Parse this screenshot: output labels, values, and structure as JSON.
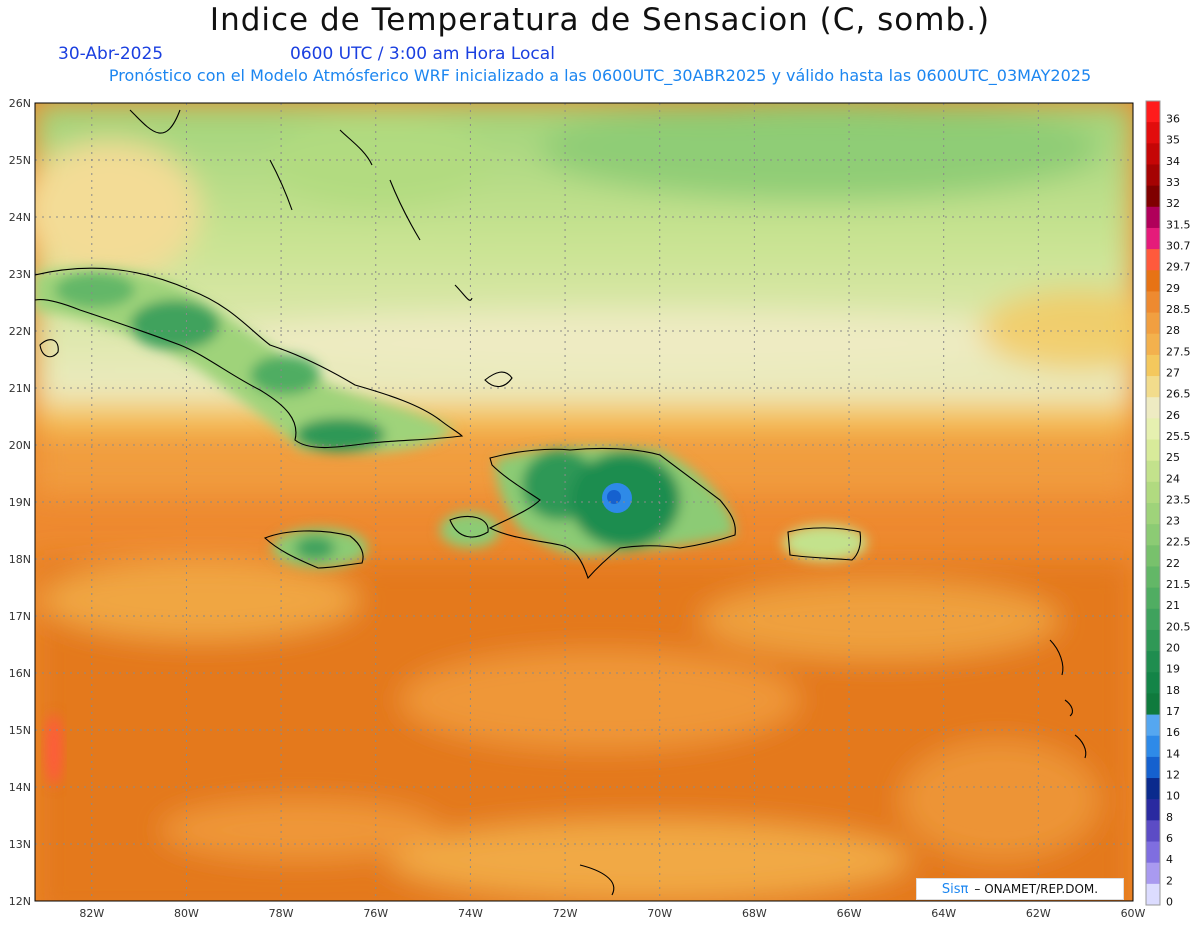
{
  "header": {
    "title": "Indice de Temperatura de Sensacion (C, somb.)",
    "date": "30-Abr-2025",
    "time": "0600 UTC / 3:00 am Hora Local",
    "model_line": "Pronóstico con el Modelo Atmósferico WRF inicializado a las 0600UTC_30ABR2025 y válido hasta las  0600UTC_03MAY2025"
  },
  "map": {
    "lat_labels": [
      "26N",
      "25N",
      "24N",
      "23N",
      "22N",
      "21N",
      "20N",
      "19N",
      "18N",
      "17N",
      "16N",
      "15N",
      "14N",
      "13N",
      "12N"
    ],
    "lon_labels": [
      "82W",
      "80W",
      "78W",
      "76W",
      "74W",
      "72W",
      "70W",
      "68W",
      "66W",
      "64W",
      "62W",
      "60W"
    ],
    "lat_range": [
      12,
      26
    ],
    "lon_range": [
      -83.2,
      -60
    ],
    "grid": true
  },
  "colorbar": {
    "labels": [
      "36",
      "35",
      "34",
      "33",
      "32",
      "31.5",
      "30.7",
      "29.7",
      "29",
      "28.5",
      "28",
      "27.5",
      "27",
      "26.5",
      "26",
      "25.5",
      "25",
      "24",
      "23.5",
      "23",
      "22.5",
      "22",
      "21.5",
      "21",
      "20.5",
      "20",
      "19",
      "18",
      "17",
      "16",
      "14",
      "12",
      "10",
      "8",
      "6",
      "4",
      "2",
      "0"
    ],
    "colors": [
      "#ff1c1c",
      "#e20d0d",
      "#c50606",
      "#a50303",
      "#7f0000",
      "#b0005a",
      "#e51b7a",
      "#ff5a3c",
      "#e77315",
      "#ee8a30",
      "#f19f40",
      "#f3b14d",
      "#f4c85d",
      "#f2dc8c",
      "#eeebc2",
      "#e6f0b0",
      "#d8eb9a",
      "#c3e28c",
      "#b1da80",
      "#9fd37a",
      "#8ccb74",
      "#78c16c",
      "#63b767",
      "#50ad62",
      "#3fa25d",
      "#2f9856",
      "#1f8d4f",
      "#138447",
      "#0f7a3d",
      "#55a7f0",
      "#2e8ae8",
      "#1561cf",
      "#0a2a8d",
      "#2a2aa0",
      "#5c4cc5",
      "#7f6ee0",
      "#a99af0",
      "#dcdcff"
    ]
  },
  "credit": {
    "brand": "Sisπ",
    "text": "– ONAMET/REP.DOM."
  },
  "palette": {
    "ocean_orange": "#ee8a30",
    "ocean_dark": "#e07214",
    "north_cream": "#eeebc2",
    "north_green": "#b8dc84",
    "land_green": "#2f9856",
    "peak_blue": "#1561cf"
  }
}
